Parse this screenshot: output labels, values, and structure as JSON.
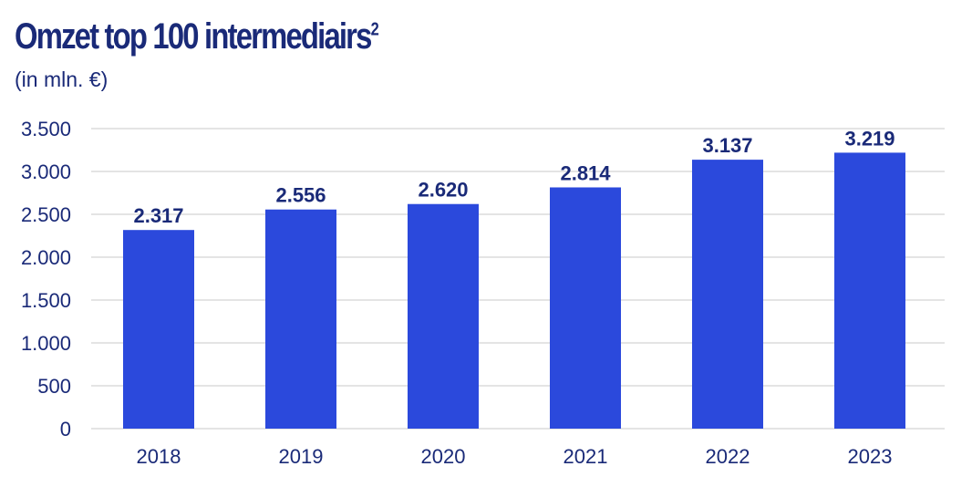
{
  "header": {
    "title": "Omzet top 100 intermediairs",
    "title_sup": "2",
    "subtitle": "(in mln. €)"
  },
  "colors": {
    "bar": "#2b49dc",
    "text": "#1a2a78",
    "grid": "#c8c8c8"
  },
  "chart_data": {
    "type": "bar",
    "categories": [
      "2018",
      "2019",
      "2020",
      "2021",
      "2022",
      "2023"
    ],
    "values": [
      2317,
      2556,
      2620,
      2814,
      3137,
      3219
    ],
    "value_labels": [
      "2.317",
      "2.556",
      "2.620",
      "2.814",
      "3.137",
      "3.219"
    ],
    "title": "Omzet top 100 intermediairs",
    "subtitle": "(in mln. €)",
    "xlabel": "",
    "ylabel": "",
    "ylim": [
      0,
      3500
    ],
    "yticks": [
      0,
      500,
      1000,
      1500,
      2000,
      2500,
      3000,
      3500
    ],
    "ytick_labels": [
      "0",
      "500",
      "1.000",
      "1.500",
      "2.000",
      "2.500",
      "3.000",
      "3.500"
    ],
    "grid": true,
    "legend": false
  }
}
